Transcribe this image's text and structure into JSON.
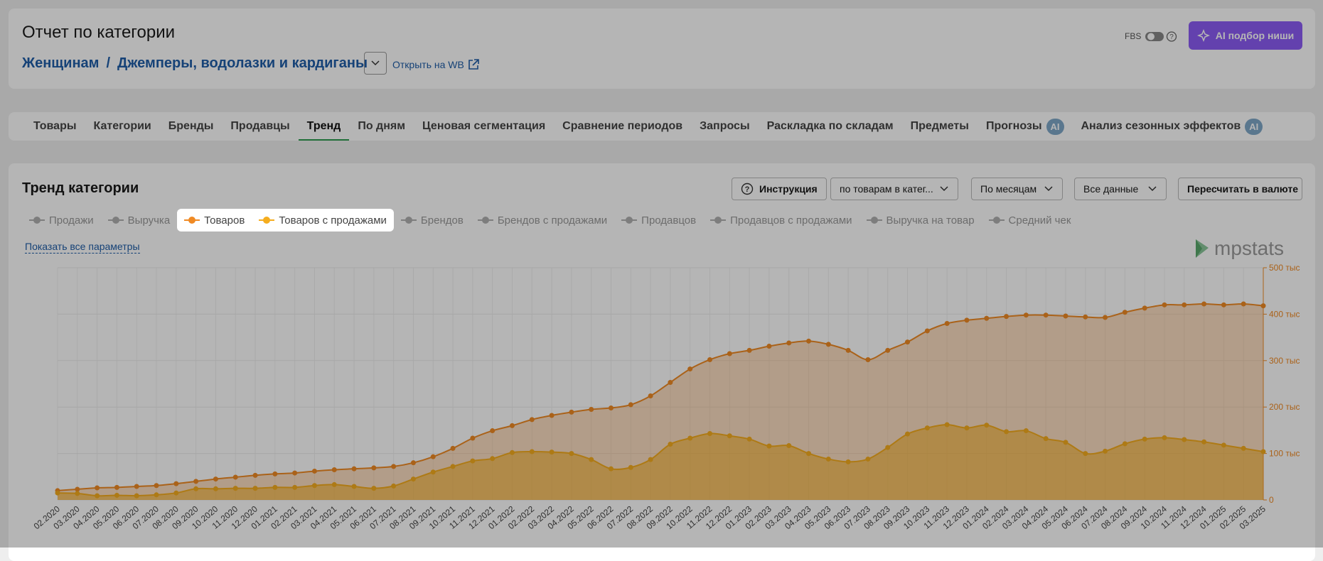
{
  "header": {
    "title": "Отчет по категории",
    "breadcrumb": [
      "Женщинам",
      "Джемперы, водолазки и кардиганы"
    ],
    "open_link": "Открыть на WB",
    "fbs": "FBS",
    "ai_button": "AI подбор ниши"
  },
  "tabs": [
    {
      "label": "Товары"
    },
    {
      "label": "Категории"
    },
    {
      "label": "Бренды"
    },
    {
      "label": "Продавцы"
    },
    {
      "label": "Тренд",
      "active": true
    },
    {
      "label": "По дням"
    },
    {
      "label": "Ценовая сегментация"
    },
    {
      "label": "Сравнение периодов"
    },
    {
      "label": "Запросы"
    },
    {
      "label": "Раскладка по складам"
    },
    {
      "label": "Предметы"
    },
    {
      "label": "Прогнозы",
      "badge": "AI"
    },
    {
      "label": "Анализ сезонных эффектов",
      "badge": "AI"
    }
  ],
  "panel": {
    "title": "Тренд категории",
    "instruction": "Инструкция",
    "selects": [
      "по товарам в катег...",
      "По месяцам",
      "Все данные"
    ],
    "recalc": "Пересчитать в валюте",
    "params_before": [
      "Продажи",
      "Выручка"
    ],
    "params_after": [
      "Брендов",
      "Брендов с продажами",
      "Продавцов",
      "Продавцов с продажами",
      "Выручка на товар",
      "Средний чек"
    ],
    "show_all": "Показать все параметры",
    "logo": "mpstats"
  },
  "chart_data": {
    "type": "line",
    "area": true,
    "grid": true,
    "categories": [
      "02.2020",
      "03.2020",
      "04.2020",
      "05.2020",
      "06.2020",
      "07.2020",
      "08.2020",
      "09.2020",
      "10.2020",
      "11.2020",
      "12.2020",
      "01.2021",
      "02.2021",
      "03.2021",
      "04.2021",
      "05.2021",
      "06.2021",
      "07.2021",
      "08.2021",
      "09.2021",
      "10.2021",
      "11.2021",
      "12.2021",
      "01.2022",
      "02.2022",
      "03.2022",
      "04.2022",
      "05.2022",
      "06.2022",
      "07.2022",
      "08.2022",
      "09.2022",
      "10.2022",
      "11.2022",
      "12.2022",
      "01.2023",
      "02.2023",
      "03.2023",
      "04.2023",
      "05.2023",
      "06.2023",
      "07.2023",
      "08.2023",
      "09.2023",
      "10.2023",
      "11.2023",
      "12.2023",
      "01.2024",
      "02.2024",
      "03.2024",
      "04.2024",
      "05.2024",
      "06.2024",
      "07.2024",
      "08.2024",
      "09.2024",
      "10.2024",
      "11.2024",
      "12.2024",
      "01.2025",
      "02.2025",
      "03.2025"
    ],
    "series": [
      {
        "name": "Товаров",
        "color": "#f08a24",
        "values": [
          20,
          23,
          26,
          27,
          29,
          31,
          35,
          40,
          45,
          49,
          53,
          56,
          58,
          62,
          65,
          67,
          69,
          72,
          80,
          93,
          111,
          133,
          149,
          160,
          173,
          182,
          189,
          195,
          198,
          205,
          224,
          253,
          282,
          302,
          315,
          322,
          331,
          338,
          342,
          335,
          322,
          302,
          322,
          340,
          364,
          380,
          387,
          391,
          395,
          398,
          398,
          396,
          394,
          393,
          404,
          413,
          420,
          420,
          422,
          420,
          422,
          418
        ]
      },
      {
        "name": "Товаров с продажами",
        "color": "#f5ad1e",
        "values": [
          15,
          14,
          9,
          10,
          9,
          11,
          15,
          24,
          24,
          25,
          25,
          27,
          27,
          31,
          33,
          29,
          25,
          30,
          45,
          60,
          72,
          84,
          89,
          102,
          104,
          103,
          100,
          87,
          67,
          70,
          87,
          120,
          133,
          143,
          138,
          131,
          116,
          117,
          100,
          88,
          82,
          88,
          113,
          142,
          155,
          162,
          155,
          161,
          147,
          149,
          132,
          124,
          100,
          105,
          121,
          131,
          134,
          130,
          125,
          118,
          111,
          104
        ]
      }
    ],
    "ylim": [
      0,
      500
    ],
    "yticks": [
      0,
      {
        "value": 100,
        "label": "100 тыс"
      },
      {
        "value": 200,
        "label": "200 тыс"
      },
      {
        "value": 300,
        "label": "300 тыс"
      },
      {
        "value": 400,
        "label": "400 тыс"
      },
      {
        "value": 500,
        "label": "500 тыс"
      }
    ]
  }
}
